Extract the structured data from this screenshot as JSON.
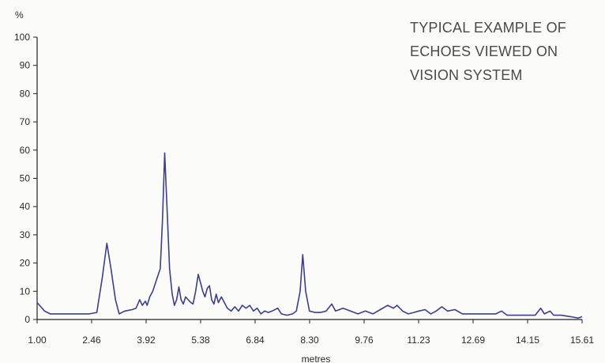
{
  "chart_data": {
    "type": "line",
    "ylabel": "%",
    "xlabel": "metres",
    "ylim": [
      0,
      100
    ],
    "xlim": [
      1.0,
      15.61
    ],
    "y_ticks": [
      "0",
      "10",
      "20",
      "30",
      "40",
      "50",
      "60",
      "70",
      "80",
      "90",
      "100"
    ],
    "x_ticks": [
      "1.00",
      "2.46",
      "3.92",
      "5.38",
      "6.84",
      "8.30",
      "9.76",
      "11.23",
      "12.69",
      "14.15",
      "15.61"
    ],
    "annotation": [
      "TYPICAL EXAMPLE OF",
      "ECHOES VIEWED ON",
      "VISION SYSTEM"
    ],
    "series": [
      {
        "color": "#3b3f8c",
        "points": [
          [
            1.0,
            6
          ],
          [
            1.1,
            4.5
          ],
          [
            1.2,
            3
          ],
          [
            1.35,
            2
          ],
          [
            1.6,
            2
          ],
          [
            2.0,
            2
          ],
          [
            2.4,
            2
          ],
          [
            2.6,
            2.5
          ],
          [
            2.75,
            15
          ],
          [
            2.87,
            27
          ],
          [
            2.98,
            18
          ],
          [
            3.1,
            7
          ],
          [
            3.2,
            2
          ],
          [
            3.35,
            3
          ],
          [
            3.55,
            3.5
          ],
          [
            3.65,
            4
          ],
          [
            3.75,
            7
          ],
          [
            3.82,
            5
          ],
          [
            3.9,
            6.5
          ],
          [
            3.95,
            5
          ],
          [
            4.02,
            8
          ],
          [
            4.1,
            10
          ],
          [
            4.2,
            14
          ],
          [
            4.3,
            18
          ],
          [
            4.36,
            35
          ],
          [
            4.42,
            59
          ],
          [
            4.48,
            40
          ],
          [
            4.55,
            18
          ],
          [
            4.62,
            9
          ],
          [
            4.68,
            5
          ],
          [
            4.74,
            7
          ],
          [
            4.8,
            11.5
          ],
          [
            4.86,
            7
          ],
          [
            4.92,
            5.5
          ],
          [
            4.98,
            8
          ],
          [
            5.05,
            7
          ],
          [
            5.12,
            6
          ],
          [
            5.18,
            5.5
          ],
          [
            5.25,
            10
          ],
          [
            5.32,
            16
          ],
          [
            5.38,
            13
          ],
          [
            5.44,
            10
          ],
          [
            5.5,
            8
          ],
          [
            5.56,
            11
          ],
          [
            5.62,
            12
          ],
          [
            5.68,
            7
          ],
          [
            5.74,
            5.5
          ],
          [
            5.8,
            9
          ],
          [
            5.86,
            6
          ],
          [
            5.94,
            8
          ],
          [
            6.02,
            6
          ],
          [
            6.1,
            4
          ],
          [
            6.2,
            3
          ],
          [
            6.3,
            4.5
          ],
          [
            6.4,
            3
          ],
          [
            6.5,
            5
          ],
          [
            6.6,
            4
          ],
          [
            6.7,
            5
          ],
          [
            6.8,
            3
          ],
          [
            6.9,
            4
          ],
          [
            7.0,
            2
          ],
          [
            7.1,
            3
          ],
          [
            7.2,
            2.5
          ],
          [
            7.3,
            3
          ],
          [
            7.45,
            4
          ],
          [
            7.55,
            2
          ],
          [
            7.7,
            1.5
          ],
          [
            7.85,
            2
          ],
          [
            7.95,
            3
          ],
          [
            8.05,
            10
          ],
          [
            8.12,
            23
          ],
          [
            8.2,
            10
          ],
          [
            8.3,
            3
          ],
          [
            8.45,
            2.5
          ],
          [
            8.6,
            2.5
          ],
          [
            8.75,
            3
          ],
          [
            8.9,
            5.5
          ],
          [
            9.0,
            3
          ],
          [
            9.2,
            4
          ],
          [
            9.4,
            3
          ],
          [
            9.6,
            2
          ],
          [
            9.8,
            3
          ],
          [
            10.0,
            2
          ],
          [
            10.2,
            3.5
          ],
          [
            10.4,
            5
          ],
          [
            10.55,
            4
          ],
          [
            10.65,
            5
          ],
          [
            10.8,
            3
          ],
          [
            10.95,
            2
          ],
          [
            11.1,
            2.5
          ],
          [
            11.23,
            3
          ],
          [
            11.4,
            3.5
          ],
          [
            11.55,
            2
          ],
          [
            11.7,
            3
          ],
          [
            11.85,
            4.5
          ],
          [
            12.0,
            3
          ],
          [
            12.2,
            3.5
          ],
          [
            12.4,
            2
          ],
          [
            12.69,
            2
          ],
          [
            13.0,
            2
          ],
          [
            13.3,
            2
          ],
          [
            13.45,
            3
          ],
          [
            13.6,
            1.5
          ],
          [
            13.9,
            1.5
          ],
          [
            14.15,
            1.5
          ],
          [
            14.35,
            1.5
          ],
          [
            14.5,
            4
          ],
          [
            14.6,
            2
          ],
          [
            14.75,
            3
          ],
          [
            14.85,
            1.5
          ],
          [
            15.05,
            1.5
          ],
          [
            15.3,
            1
          ],
          [
            15.5,
            0.5
          ],
          [
            15.61,
            1
          ]
        ]
      }
    ],
    "grid": false
  }
}
